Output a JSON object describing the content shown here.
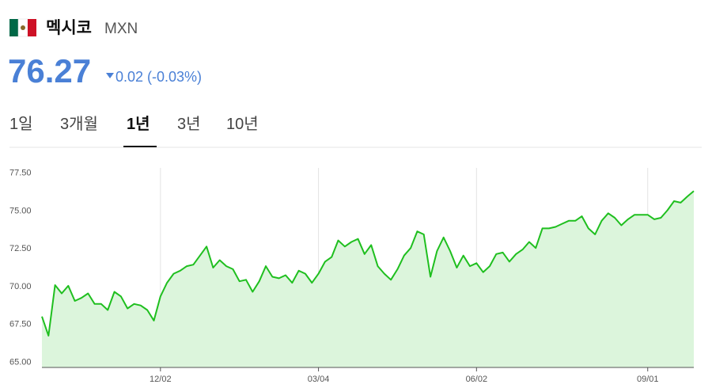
{
  "header": {
    "title": "멕시코",
    "currency": "MXN",
    "price": "76.27",
    "change": "0.02 (-0.03%)"
  },
  "tabs": {
    "items": [
      "1일",
      "3개월",
      "1년",
      "3년",
      "10년"
    ],
    "selected": 2
  },
  "chart_data": {
    "type": "area",
    "categories": [
      null,
      null,
      null,
      null,
      null,
      null,
      null,
      null,
      null,
      null,
      null,
      null,
      null,
      null,
      null,
      null,
      null,
      null,
      "12/02",
      null,
      null,
      null,
      null,
      null,
      null,
      null,
      null,
      null,
      null,
      null,
      null,
      null,
      null,
      null,
      null,
      null,
      null,
      null,
      null,
      null,
      null,
      null,
      "03/04",
      null,
      null,
      null,
      null,
      null,
      null,
      null,
      null,
      null,
      null,
      null,
      null,
      null,
      null,
      null,
      null,
      null,
      null,
      null,
      null,
      null,
      null,
      null,
      "06/02",
      null,
      null,
      null,
      null,
      null,
      null,
      null,
      null,
      null,
      null,
      null,
      null,
      null,
      null,
      null,
      null,
      null,
      null,
      null,
      null,
      null,
      null,
      null,
      null,
      null,
      "09/01",
      null,
      null,
      null,
      null,
      null,
      null,
      null
    ],
    "values": [
      67.97,
      66.7,
      70.05,
      69.5,
      70.0,
      69.0,
      69.2,
      69.5,
      68.8,
      68.8,
      68.4,
      69.6,
      69.3,
      68.5,
      68.8,
      68.7,
      68.4,
      67.7,
      69.3,
      70.2,
      70.8,
      71.0,
      71.3,
      71.4,
      72.0,
      72.6,
      71.2,
      71.7,
      71.3,
      71.1,
      70.3,
      70.4,
      69.6,
      70.3,
      71.3,
      70.6,
      70.5,
      70.7,
      70.2,
      71.0,
      70.8,
      70.2,
      70.8,
      71.6,
      71.9,
      73.0,
      72.6,
      72.9,
      73.1,
      72.1,
      72.7,
      71.3,
      70.8,
      70.4,
      71.1,
      72.0,
      72.5,
      73.6,
      73.4,
      70.6,
      72.3,
      73.2,
      72.3,
      71.2,
      72.0,
      71.3,
      71.5,
      70.9,
      71.3,
      72.1,
      72.2,
      71.6,
      72.1,
      72.4,
      72.9,
      72.5,
      73.8,
      73.8,
      73.9,
      74.1,
      74.3,
      74.3,
      74.6,
      73.8,
      73.4,
      74.3,
      74.8,
      74.5,
      74.0,
      74.4,
      74.7,
      74.7,
      74.7,
      74.4,
      74.5,
      75.0,
      75.6,
      75.5,
      75.9,
      76.27
    ],
    "color": "#1fbf1f",
    "area_color": "#dcf5dc",
    "ylim": [
      64.6,
      77.8
    ],
    "yticks": [
      {
        "value": 65,
        "label": "65.00"
      },
      {
        "value": 67.5,
        "label": "67.50"
      },
      {
        "value": 70,
        "label": "70.00"
      },
      {
        "value": 72.5,
        "label": "72.50"
      },
      {
        "value": 75,
        "label": "75.00"
      },
      {
        "value": 77.5,
        "label": "77.50"
      }
    ],
    "grid": true
  }
}
